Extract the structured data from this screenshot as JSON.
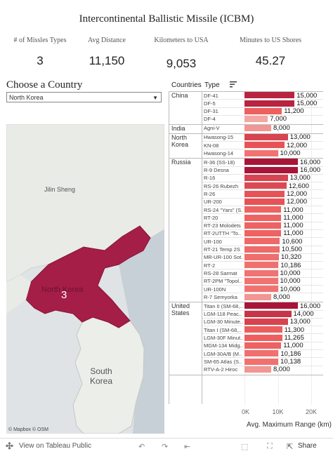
{
  "title": "Intercontinental Ballistic Missile (ICBM)",
  "kpis": [
    {
      "label": "# of Missles Types",
      "value": "3"
    },
    {
      "label": "Avg Distance",
      "value": "11,150"
    },
    {
      "label": "Kilometers to USA",
      "value": "9,053"
    },
    {
      "label": "Minutes to US Shores",
      "value": "45.27"
    }
  ],
  "filter": {
    "label": "Choose a Country",
    "selected": "North Korea"
  },
  "map": {
    "highlight_value": "3",
    "labels": [
      "Jilin Sheng",
      "North Korea",
      "South Korea"
    ],
    "credit": "© Mapbox © OSM"
  },
  "chart_headers": {
    "countries": "Countries",
    "type": "Type"
  },
  "chart_data": {
    "type": "bar",
    "xlabel": "Avg. Maximum Range (km)",
    "xticks": [
      "0K",
      "10K",
      "20K"
    ],
    "xlim": [
      0,
      22000
    ],
    "groups": [
      {
        "country": "China",
        "items": [
          {
            "type": "DF-41",
            "value": 15000,
            "label": "15,000"
          },
          {
            "type": "DF-5",
            "value": 15000,
            "label": "15,000"
          },
          {
            "type": "DF-31",
            "value": 11200,
            "label": "11,200"
          },
          {
            "type": "DF-4",
            "value": 7000,
            "label": "7,000"
          }
        ]
      },
      {
        "country": "India",
        "items": [
          {
            "type": "Agni-V",
            "value": 8000,
            "label": "8,000"
          }
        ]
      },
      {
        "country": "North Korea",
        "items": [
          {
            "type": "Hwasong-15",
            "value": 13000,
            "label": "13,000"
          },
          {
            "type": "KN-08",
            "value": 12000,
            "label": "12,000"
          },
          {
            "type": "Hwasong-14",
            "value": 10000,
            "label": "10,000"
          }
        ]
      },
      {
        "country": "Russia",
        "items": [
          {
            "type": "R-36 (SS-18)",
            "value": 16000,
            "label": "16,000"
          },
          {
            "type": "R-9 Desna",
            "value": 16000,
            "label": "16,000"
          },
          {
            "type": "R-16",
            "value": 13000,
            "label": "13,000"
          },
          {
            "type": "RS-26 Rubezh",
            "value": 12600,
            "label": "12,600"
          },
          {
            "type": "R-26",
            "value": 12000,
            "label": "12,000"
          },
          {
            "type": "UR-200",
            "value": 12000,
            "label": "12,000"
          },
          {
            "type": "RS-24 \"Yars\" (S..",
            "value": 11000,
            "label": "11,000"
          },
          {
            "type": "RT-20",
            "value": 11000,
            "label": "11,000"
          },
          {
            "type": "RT-23 Molodets",
            "value": 11000,
            "label": "11,000"
          },
          {
            "type": "RT-2UTTH \"To..",
            "value": 11000,
            "label": "11,000"
          },
          {
            "type": "UR-100",
            "value": 10600,
            "label": "10,600"
          },
          {
            "type": "RT-21 Temp 2S",
            "value": 10500,
            "label": "10,500"
          },
          {
            "type": "MR-UR-100 Sot..",
            "value": 10320,
            "label": "10,320"
          },
          {
            "type": "RT-2",
            "value": 10186,
            "label": "10,186"
          },
          {
            "type": "RS-28 Sarmat",
            "value": 10000,
            "label": "10,000"
          },
          {
            "type": "RT-2PM \"Topol..",
            "value": 10000,
            "label": "10,000"
          },
          {
            "type": "UR-100N",
            "value": 10000,
            "label": "10,000"
          },
          {
            "type": "R-7 Semyorka",
            "value": 8000,
            "label": "8,000"
          }
        ]
      },
      {
        "country": "United States",
        "items": [
          {
            "type": "Titan II (SM-68,..",
            "value": 16000,
            "label": "16,000"
          },
          {
            "type": "LGM-118 Peac..",
            "value": 14000,
            "label": "14,000"
          },
          {
            "type": "LGM-30 Minute..",
            "value": 13000,
            "label": "13,000"
          },
          {
            "type": "Titan I (SM-68,..",
            "value": 11300,
            "label": "11,300"
          },
          {
            "type": "LGM-30F Minut..",
            "value": 11265,
            "label": "11,265"
          },
          {
            "type": "MGM-134 Midg..",
            "value": 11000,
            "label": "11,000"
          },
          {
            "type": "LGM-30A/B (M..",
            "value": 10186,
            "label": "10,186"
          },
          {
            "type": "SM-65 Atlas (S..",
            "value": 10138,
            "label": "10,138"
          },
          {
            "type": "RTV-A-2 Hiroc",
            "value": 8000,
            "label": "8,000"
          }
        ]
      }
    ],
    "color_scale": {
      "low": "#f4a6a2",
      "mid": "#ee5a5a",
      "high": "#a81538"
    }
  },
  "footer": {
    "view_label": "View on Tableau Public",
    "share_label": "Share"
  }
}
